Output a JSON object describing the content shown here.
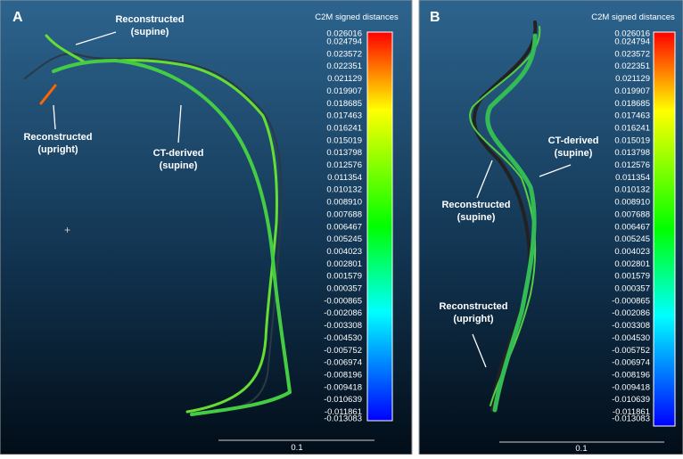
{
  "panels": [
    {
      "label": "A",
      "colorbar": {
        "title": "C2M signed distances",
        "labels": [
          "0.026016",
          "0.024794",
          "0.023572",
          "0.022351",
          "0.021129",
          "0.019907",
          "0.018685",
          "0.017463",
          "0.016241",
          "0.015019",
          "0.013798",
          "0.012576",
          "0.011354",
          "0.010132",
          "0.008910",
          "0.007688",
          "0.006467",
          "0.005245",
          "0.004023",
          "0.002801",
          "0.001579",
          "0.000357",
          "-0.000865",
          "-0.002086",
          "-0.003308",
          "-0.004530",
          "-0.005752",
          "-0.006974",
          "-0.008196",
          "-0.009418",
          "-0.010639",
          "-0.011861",
          "-0.013083"
        ]
      },
      "annotations": [
        {
          "lines": [
            "Reconstructed",
            "(supine)"
          ]
        },
        {
          "lines": [
            "Reconstructed",
            "(upright)"
          ]
        },
        {
          "lines": [
            "CT-derived",
            "(supine)"
          ]
        }
      ],
      "scale_bar": "0.1"
    },
    {
      "label": "B",
      "colorbar": {
        "title": "C2M signed distances",
        "labels": [
          "0.026016",
          "0.024794",
          "0.023572",
          "0.022351",
          "0.021129",
          "0.019907",
          "0.018685",
          "0.017463",
          "0.016241",
          "0.015019",
          "0.013798",
          "0.012576",
          "0.011354",
          "0.010132",
          "0.008910",
          "0.007688",
          "0.006467",
          "0.005245",
          "0.004023",
          "0.002801",
          "0.001579",
          "0.000357",
          "-0.000865",
          "-0.002086",
          "-0.003308",
          "-0.004530",
          "-0.005752",
          "-0.006974",
          "-0.008196",
          "-0.009418",
          "-0.010639",
          "-0.011861",
          "-0.013083"
        ]
      },
      "annotations": [
        {
          "lines": [
            "CT-derived",
            "(supine)"
          ]
        },
        {
          "lines": [
            "Reconstructed",
            "(supine)"
          ]
        },
        {
          "lines": [
            "Reconstructed",
            "(upright)"
          ]
        }
      ],
      "scale_bar": "0.1"
    }
  ]
}
